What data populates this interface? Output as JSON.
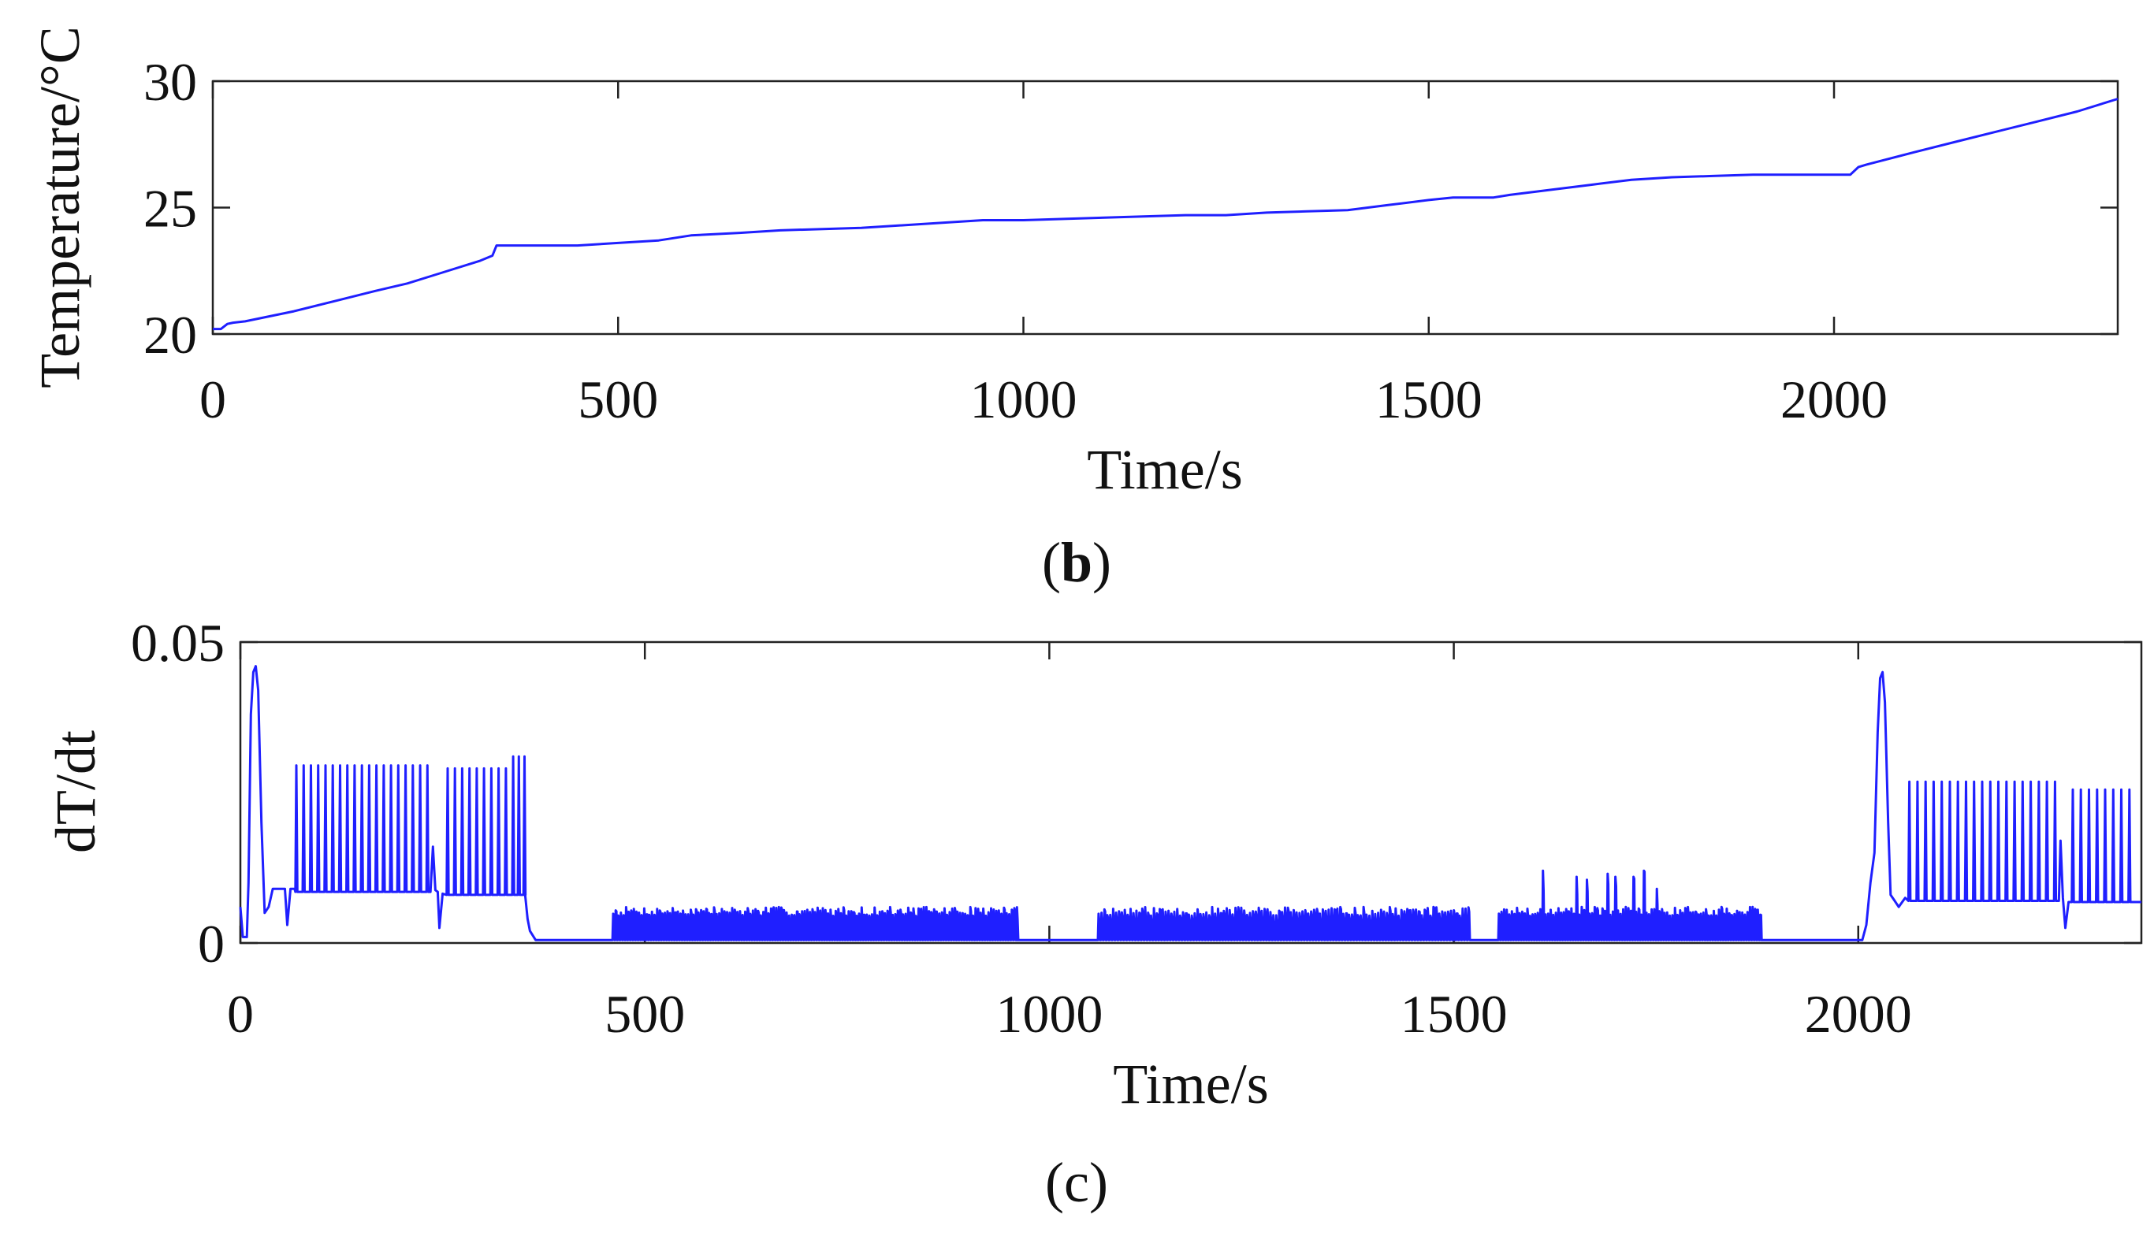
{
  "colors": {
    "line": "#1f1fff",
    "axis": "#222222",
    "text": "#111111"
  },
  "chart_data": [
    {
      "type": "line",
      "panel_label": {
        "open": "(",
        "letter": "b",
        "close": ")"
      },
      "xlabel": "Time/s",
      "ylabel": "Temperature/°C",
      "xlim": [
        0,
        2350
      ],
      "ylim": [
        20,
        30
      ],
      "xticks": [
        0,
        500,
        1000,
        1500,
        2000
      ],
      "yticks": [
        20,
        25,
        30
      ],
      "xtick_labels": [
        "0",
        "500",
        "1000",
        "1500",
        "2000"
      ],
      "ytick_labels": [
        "20",
        "25",
        "30"
      ],
      "grid": false,
      "series": [
        {
          "points": [
            [
              0,
              20.2
            ],
            [
              10,
              20.2
            ],
            [
              18,
              20.4
            ],
            [
              25,
              20.45
            ],
            [
              40,
              20.5
            ],
            [
              100,
              20.9
            ],
            [
              150,
              21.3
            ],
            [
              200,
              21.7
            ],
            [
              240,
              22.0
            ],
            [
              280,
              22.4
            ],
            [
              330,
              22.9
            ],
            [
              345,
              23.1
            ],
            [
              350,
              23.5
            ],
            [
              400,
              23.5
            ],
            [
              450,
              23.5
            ],
            [
              500,
              23.6
            ],
            [
              550,
              23.7
            ],
            [
              590,
              23.9
            ],
            [
              650,
              24.0
            ],
            [
              700,
              24.1
            ],
            [
              800,
              24.2
            ],
            [
              900,
              24.4
            ],
            [
              950,
              24.5
            ],
            [
              1000,
              24.5
            ],
            [
              1050,
              24.55
            ],
            [
              1100,
              24.6
            ],
            [
              1200,
              24.7
            ],
            [
              1250,
              24.7
            ],
            [
              1300,
              24.8
            ],
            [
              1350,
              24.85
            ],
            [
              1400,
              24.9
            ],
            [
              1450,
              25.1
            ],
            [
              1500,
              25.3
            ],
            [
              1530,
              25.4
            ],
            [
              1580,
              25.4
            ],
            [
              1600,
              25.5
            ],
            [
              1650,
              25.7
            ],
            [
              1700,
              25.9
            ],
            [
              1750,
              26.1
            ],
            [
              1800,
              26.2
            ],
            [
              1850,
              26.25
            ],
            [
              1900,
              26.3
            ],
            [
              1950,
              26.3
            ],
            [
              2000,
              26.3
            ],
            [
              2020,
              26.3
            ],
            [
              2030,
              26.6
            ],
            [
              2040,
              26.7
            ],
            [
              2100,
              27.2
            ],
            [
              2150,
              27.6
            ],
            [
              2200,
              28.0
            ],
            [
              2250,
              28.4
            ],
            [
              2300,
              28.8
            ],
            [
              2350,
              29.3
            ]
          ]
        }
      ]
    },
    {
      "type": "line",
      "panel_label": {
        "open": "(",
        "letter": "c",
        "close": ")"
      },
      "xlabel": "Time/s",
      "ylabel": "dT/dt",
      "xlim": [
        0,
        2350
      ],
      "ylim": [
        0,
        0.05
      ],
      "xticks": [
        0,
        500,
        1000,
        1500,
        2000
      ],
      "yticks": [
        0,
        0.05
      ],
      "xtick_labels": [
        "0",
        "500",
        "1000",
        "1500",
        "2000"
      ],
      "ytick_labels": [
        "0",
        "0.05"
      ],
      "grid": false,
      "series": [
        {
          "segments": [
            {
              "type": "points",
              "points": [
                [
                  0,
                  0.006
                ],
                [
                  3,
                  0.001
                ],
                [
                  8,
                  0.001
                ],
                [
                  10,
                  0.01
                ],
                [
                  13,
                  0.038
                ],
                [
                  16,
                  0.045
                ],
                [
                  19,
                  0.046
                ],
                [
                  22,
                  0.042
                ],
                [
                  26,
                  0.02
                ],
                [
                  30,
                  0.005
                ],
                [
                  35,
                  0.006
                ],
                [
                  40,
                  0.009
                ],
                [
                  55,
                  0.009
                ],
                [
                  58,
                  0.003
                ],
                [
                  62,
                  0.009
                ],
                [
                  67,
                  0.009
                ]
              ]
            },
            {
              "type": "spikes",
              "start": 68,
              "end": 230,
              "step": 9,
              "base": 0.0085,
              "peak": 0.0295
            },
            {
              "type": "points",
              "points": [
                [
                  235,
                  0.0085
                ],
                [
                  238,
                  0.016
                ],
                [
                  241,
                  0.0088
                ],
                [
                  244,
                  0.0085
                ],
                [
                  246,
                  0.0025
                ],
                [
                  250,
                  0.0082
                ]
              ]
            },
            {
              "type": "spikes",
              "start": 255,
              "end": 330,
              "step": 9,
              "base": 0.008,
              "peak": 0.029
            },
            {
              "type": "spikes",
              "start": 336,
              "end": 350,
              "step": 7,
              "base": 0.008,
              "peak": 0.031
            },
            {
              "type": "points",
              "points": [
                [
                  352,
                  0.008
                ],
                [
                  355,
                  0.004
                ],
                [
                  358,
                  0.002
                ],
                [
                  365,
                  0.0005
                ],
                [
                  460,
                  0.0005
                ]
              ]
            },
            {
              "type": "noise",
              "start": 460,
              "end": 960,
              "step": 3.2,
              "low": 0.0005,
              "high": 0.006,
              "seed": 7
            },
            {
              "type": "points",
              "points": [
                [
                  960,
                  0.0005
                ],
                [
                  1060,
                  0.0005
                ]
              ]
            },
            {
              "type": "noise",
              "start": 1060,
              "end": 1520,
              "step": 3.6,
              "low": 0.0005,
              "high": 0.006,
              "seed": 11
            },
            {
              "type": "points",
              "points": [
                [
                  1520,
                  0.0005
                ],
                [
                  1555,
                  0.0005
                ]
              ]
            },
            {
              "type": "noise",
              "start": 1555,
              "end": 1880,
              "step": 3.2,
              "low": 0.0005,
              "high": 0.006,
              "seed": 17,
              "extras": [
                [
                  1610,
                  0.012
                ],
                [
                  1650,
                  0.011
                ],
                [
                  1665,
                  0.0105
                ],
                [
                  1690,
                  0.0115
                ],
                [
                  1700,
                  0.011
                ],
                [
                  1720,
                  0.011
                ],
                [
                  1735,
                  0.012
                ],
                [
                  1750,
                  0.009
                ]
              ]
            },
            {
              "type": "points",
              "points": [
                [
                  1880,
                  0.0005
                ],
                [
                  2005,
                  0.0005
                ],
                [
                  2010,
                  0.003
                ],
                [
                  2015,
                  0.01
                ],
                [
                  2020,
                  0.015
                ],
                [
                  2024,
                  0.035
                ],
                [
                  2027,
                  0.044
                ],
                [
                  2030,
                  0.045
                ],
                [
                  2033,
                  0.04
                ],
                [
                  2037,
                  0.02
                ],
                [
                  2040,
                  0.008
                ],
                [
                  2045,
                  0.007
                ],
                [
                  2050,
                  0.006
                ],
                [
                  2058,
                  0.0075
                ]
              ]
            },
            {
              "type": "spikes",
              "start": 2062,
              "end": 2245,
              "step": 10,
              "base": 0.007,
              "peak": 0.0268
            },
            {
              "type": "points",
              "points": [
                [
                  2248,
                  0.007
                ],
                [
                  2250,
                  0.017
                ],
                [
                  2253,
                  0.0075
                ],
                [
                  2256,
                  0.0025
                ],
                [
                  2260,
                  0.0068
                ]
              ]
            },
            {
              "type": "spikes",
              "start": 2264,
              "end": 2340,
              "step": 10,
              "base": 0.0068,
              "peak": 0.0255
            },
            {
              "type": "points",
              "points": [
                [
                  2345,
                  0.0068
                ],
                [
                  2350,
                  0.0068
                ]
              ]
            }
          ]
        }
      ]
    }
  ]
}
